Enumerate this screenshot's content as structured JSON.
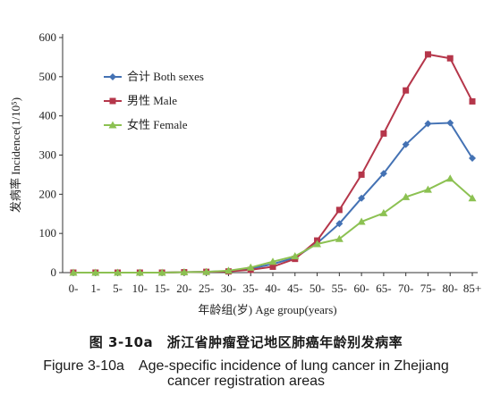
{
  "chart_data": {
    "type": "line",
    "title": "",
    "xlabel": "年龄组(岁) Age group(years)",
    "ylabel": "发病率 Incidence(1/10⁵)",
    "ylim": [
      0,
      600
    ],
    "yticks": [
      0,
      100,
      200,
      300,
      400,
      500,
      600
    ],
    "grid": false,
    "legend": "top-left",
    "categories": [
      "0-",
      "1-",
      "5-",
      "10-",
      "15-",
      "20-",
      "25-",
      "30-",
      "35-",
      "40-",
      "45-",
      "50-",
      "55-",
      "60-",
      "65-",
      "70-",
      "75-",
      "80-",
      "85+"
    ],
    "series": [
      {
        "name": "合计 Both sexes",
        "color": "#4472b4",
        "marker": "diamond",
        "values": [
          0,
          0,
          0,
          0,
          0,
          1,
          2,
          4,
          10,
          22,
          38,
          75,
          125,
          190,
          253,
          327,
          380,
          382,
          292
        ]
      },
      {
        "name": "男性 Male",
        "color": "#b5364a",
        "marker": "square",
        "values": [
          0,
          0,
          0,
          0,
          0,
          1,
          2,
          3,
          7,
          15,
          35,
          82,
          160,
          250,
          355,
          465,
          557,
          547,
          437
        ]
      },
      {
        "name": "女性 Female",
        "color": "#8cc152",
        "marker": "triangle",
        "values": [
          0,
          0,
          0,
          0,
          0,
          1,
          2,
          5,
          13,
          28,
          42,
          73,
          86,
          130,
          152,
          193,
          212,
          240,
          190
        ]
      }
    ]
  },
  "caption": {
    "cn": "图 3-10a　浙江省肿瘤登记地区肺癌年龄别发病率",
    "en_line1": "Figure 3-10a　Age-specific incidence of lung cancer in Zhejiang",
    "en_line2": "cancer registration areas"
  }
}
